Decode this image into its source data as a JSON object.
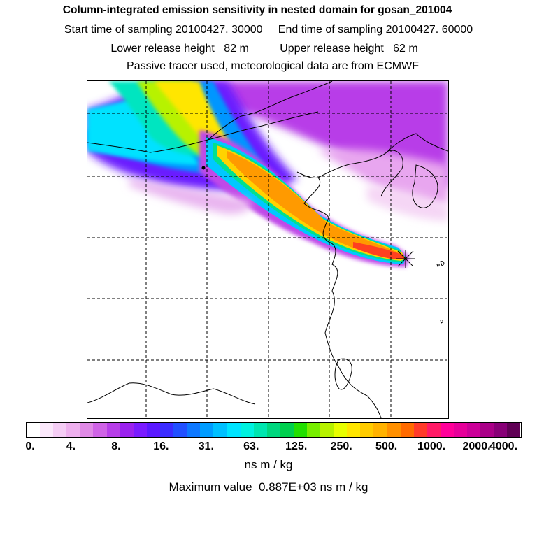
{
  "header": {
    "title": "Column-integrated emission sensitivity in nested domain for gosan_201004",
    "line2": "Start time of sampling 20100427. 30000     End time of sampling 20100427. 60000",
    "line3": "Lower release height   82 m          Upper release height   62 m",
    "line4": "Passive tracer used, meteorological data are from ECMWF"
  },
  "colorbar": {
    "colors": [
      "#ffffff",
      "#fbe8fb",
      "#f5cdf5",
      "#eeb0ee",
      "#e08ae6",
      "#cf63e6",
      "#b73ee9",
      "#9b22ef",
      "#7a1bff",
      "#5a19ff",
      "#3b2cff",
      "#2250ff",
      "#0e78ff",
      "#009cff",
      "#00c0ff",
      "#00e4ff",
      "#00f2e0",
      "#00e6b0",
      "#00d77f",
      "#00d04e",
      "#22e000",
      "#77ee00",
      "#b7f200",
      "#e8ff00",
      "#ffe600",
      "#ffcc00",
      "#ffb200",
      "#ff9000",
      "#ff6a00",
      "#ff3a2a",
      "#ff1a66",
      "#ff0099",
      "#e6009a",
      "#cc0099",
      "#aa0088",
      "#880077",
      "#600055"
    ],
    "ticks": [
      "0.",
      "4.",
      "8.",
      "16.",
      "31.",
      "63.",
      "125.",
      "250.",
      "500.",
      "1000.",
      "2000.",
      "4000."
    ],
    "units": "ns m / kg",
    "max_value_text": "Maximum value  0.887E+03 ns m / kg"
  },
  "map": {
    "receptor": "gosan",
    "grid": "on"
  }
}
